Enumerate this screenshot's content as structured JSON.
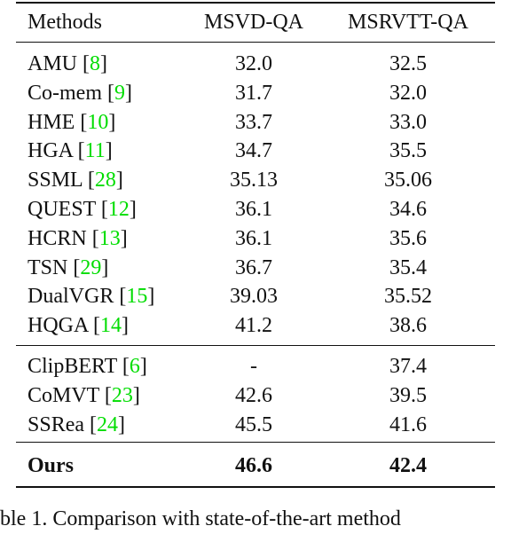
{
  "table": {
    "headers": [
      "Methods",
      "MSVD-QA",
      "MSRVTT-QA"
    ],
    "group1": [
      {
        "method": "AMU",
        "ref": "8",
        "msvd": "32.0",
        "msrvtt": "32.5"
      },
      {
        "method": "Co-mem",
        "ref": "9",
        "msvd": "31.7",
        "msrvtt": "32.0"
      },
      {
        "method": "HME",
        "ref": "10",
        "msvd": "33.7",
        "msrvtt": "33.0"
      },
      {
        "method": "HGA",
        "ref": "11",
        "msvd": "34.7",
        "msrvtt": "35.5"
      },
      {
        "method": "SSML",
        "ref": "28",
        "msvd": "35.13",
        "msrvtt": "35.06"
      },
      {
        "method": "QUEST",
        "ref": "12",
        "msvd": "36.1",
        "msrvtt": "34.6"
      },
      {
        "method": "HCRN",
        "ref": "13",
        "msvd": "36.1",
        "msrvtt": "35.6"
      },
      {
        "method": "TSN",
        "ref": "29",
        "msvd": "36.7",
        "msrvtt": "35.4"
      },
      {
        "method": "DualVGR",
        "ref": "15",
        "msvd": "39.03",
        "msrvtt": "35.52"
      },
      {
        "method": "HQGA",
        "ref": "14",
        "msvd": "41.2",
        "msrvtt": "38.6"
      }
    ],
    "group2": [
      {
        "method": "ClipBERT",
        "ref": "6",
        "msvd": "-",
        "msrvtt": "37.4"
      },
      {
        "method": "CoMVT",
        "ref": "23",
        "msvd": "42.6",
        "msrvtt": "39.5"
      },
      {
        "method": "SSRea",
        "ref": "24",
        "msvd": "45.5",
        "msrvtt": "41.6"
      }
    ],
    "ours": {
      "method": "Ours",
      "msvd": "46.6",
      "msrvtt": "42.4"
    }
  },
  "caption": {
    "text": "ble 1.    Comparison with state-of-the-art method"
  },
  "colors": {
    "reference": "#00dd00",
    "text": "#111111",
    "rule": "#111111"
  }
}
